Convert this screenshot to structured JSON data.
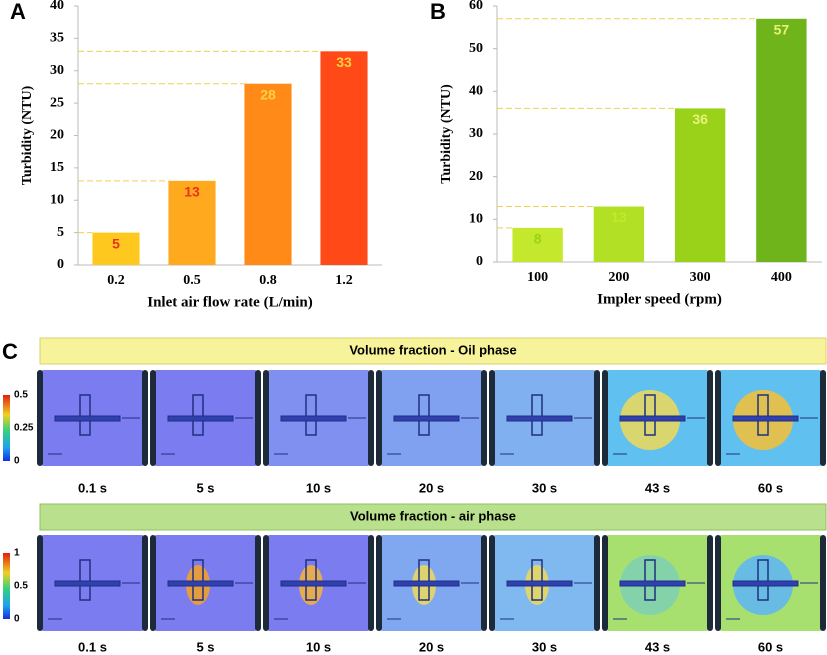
{
  "chart_data": [
    {
      "type": "bar",
      "panel": "A",
      "ylabel": "Turbidity (NTU)",
      "xlabel": "Inlet air flow rate (L/min)",
      "categories": [
        "0.2",
        "0.5",
        "0.8",
        "1.2"
      ],
      "values": [
        5,
        13,
        28,
        33
      ],
      "colors": [
        "#ffc81e",
        "#ffaa1e",
        "#ff8a18",
        "#ff4a18"
      ],
      "label_colors": [
        "#e8321e",
        "#e8321e",
        "#ffd040",
        "#ffd040"
      ],
      "ylim": [
        0,
        40
      ],
      "yticks": [
        0,
        5,
        10,
        15,
        20,
        25,
        30,
        35,
        40
      ],
      "reference_lines": true
    },
    {
      "type": "bar",
      "panel": "B",
      "ylabel": "Turbidity (NTU)",
      "xlabel": "Impler speed (rpm)",
      "categories": [
        "100",
        "200",
        "300",
        "400"
      ],
      "values": [
        8,
        13,
        36,
        57
      ],
      "colors": [
        "#c4e82c",
        "#b2e024",
        "#9ad21a",
        "#6fb41a"
      ],
      "label_colors": [
        "#9ad21a",
        "#c4e82c",
        "#e8f27a",
        "#e8f27a"
      ],
      "ylim": [
        0,
        60
      ],
      "yticks": [
        0,
        10,
        20,
        30,
        40,
        50,
        60
      ],
      "reference_lines": true
    }
  ],
  "panel_c": {
    "label": "C",
    "rows": [
      {
        "title": "Volume fraction - Oil phase",
        "colorbar_ticks": [
          "0.5",
          "0.25",
          "0"
        ],
        "times": [
          "0.1 s",
          "5 s",
          "10 s",
          "20 s",
          "30 s",
          "43 s",
          "60 s"
        ]
      },
      {
        "title": "Volume fraction - air phase",
        "colorbar_ticks": [
          "1",
          "0.5",
          "0"
        ],
        "times": [
          "0.1 s",
          "5 s",
          "10 s",
          "20 s",
          "30 s",
          "43 s",
          "60 s"
        ]
      }
    ]
  }
}
